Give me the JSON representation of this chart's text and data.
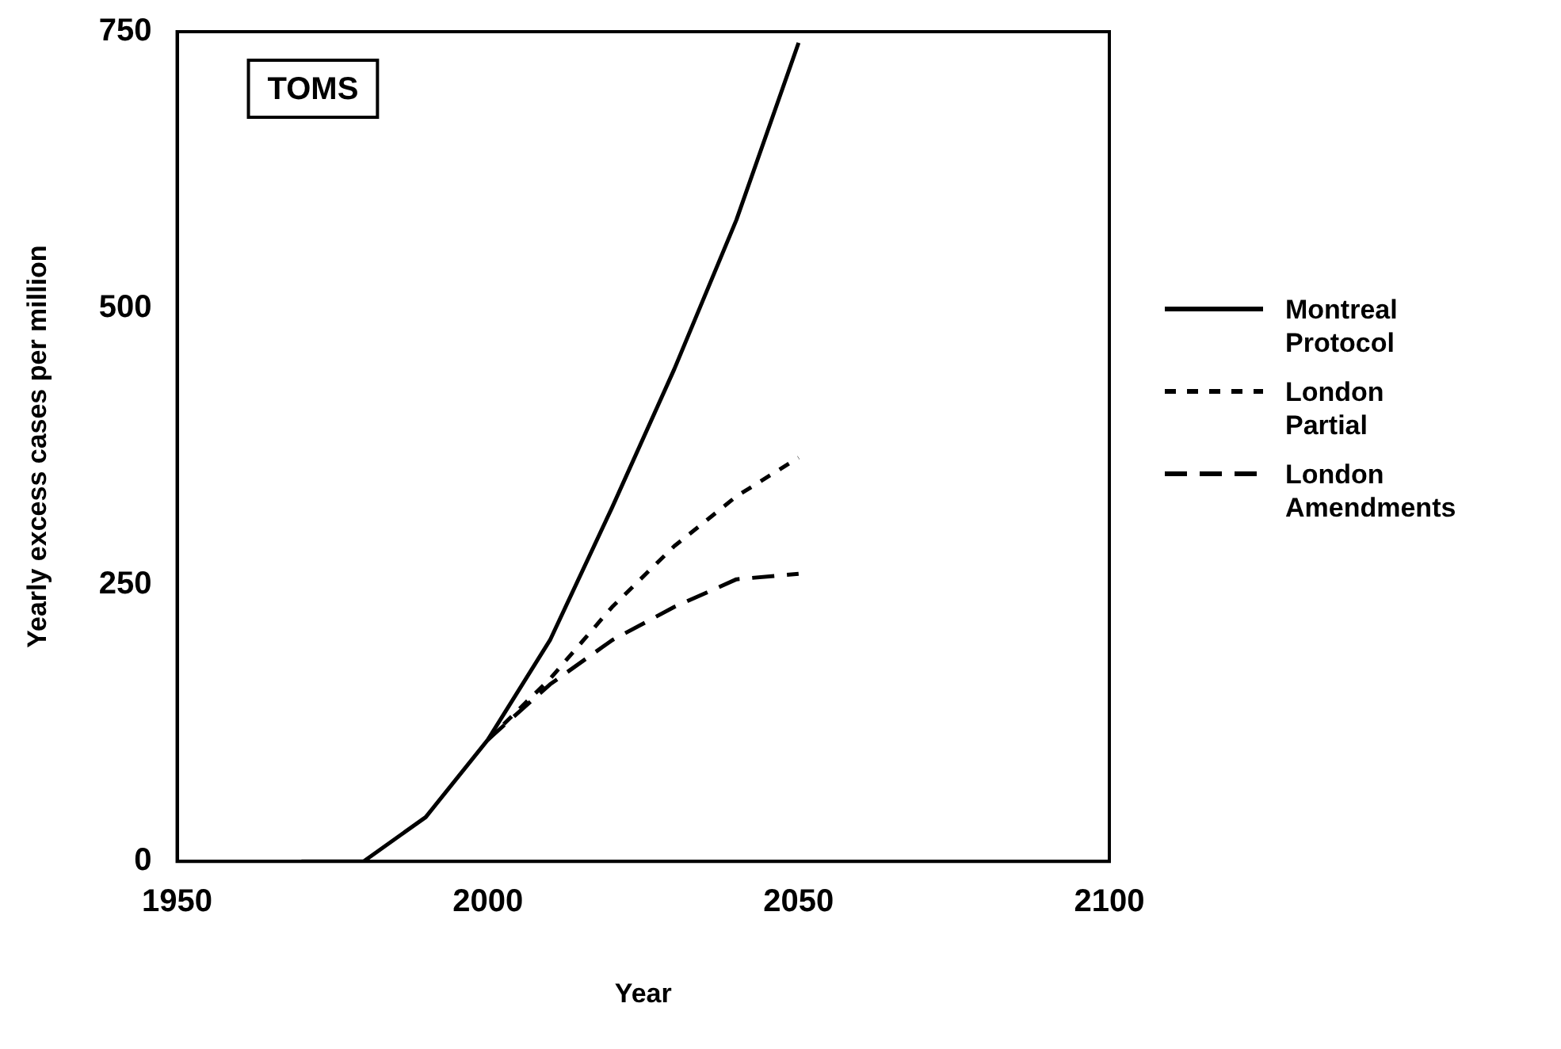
{
  "chart_data": {
    "type": "line",
    "xlabel": "Year",
    "ylabel": "Yearly excess cases per million",
    "annotations": [
      "TOMS"
    ],
    "xlim": [
      1950,
      2100
    ],
    "xticks": [
      1950,
      2000,
      2050,
      2100
    ],
    "ylim": [
      0,
      750
    ],
    "yticks": [
      0,
      250,
      500,
      750
    ],
    "grid": false,
    "legend": "right",
    "marker": "none",
    "series": [
      {
        "name": "Montreal Protocol",
        "color": "#000000",
        "line_style": "solid",
        "x": [
          1970,
          1980,
          1990,
          2000,
          2010,
          2020,
          2030,
          2040,
          2050
        ],
        "values": [
          0,
          0,
          40,
          110,
          200,
          320,
          445,
          580,
          740
        ]
      },
      {
        "name": "London Partial",
        "color": "#000000",
        "line_style": "dotted",
        "x": [
          2000,
          2010,
          2020,
          2030,
          2040,
          2050
        ],
        "values": [
          110,
          165,
          230,
          285,
          330,
          365
        ]
      },
      {
        "name": "London Amendments",
        "color": "#000000",
        "line_style": "dashed",
        "x": [
          2000,
          2010,
          2020,
          2030,
          2040,
          2050
        ],
        "values": [
          110,
          160,
          200,
          230,
          255,
          260
        ]
      }
    ]
  }
}
